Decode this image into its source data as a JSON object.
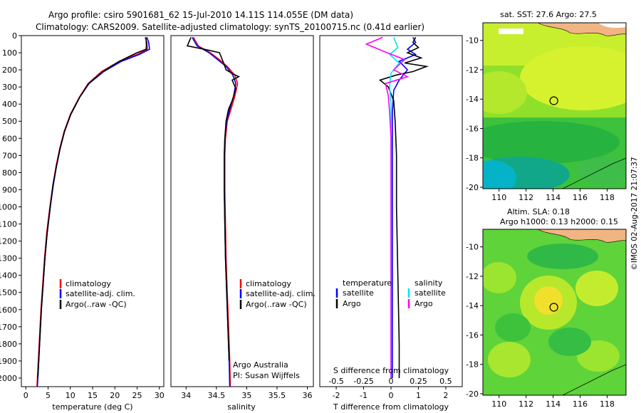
{
  "header": {
    "line1": "Argo profile: csiro 5901681_62 15-Jul-2010 14.11S 114.055E (DM data)",
    "line2": "Climatology: CARS2009. Satellite-adjusted climatology: synTS_20100715.nc (0.41d earlier)"
  },
  "colors": {
    "climatology": "#ff0000",
    "satellite": "#0000ff",
    "argo": "#000000",
    "sal_satellite": "#00e5ee",
    "sal_argo": "#ff00ff"
  },
  "chart_data": [
    {
      "type": "line",
      "id": "temperature-profile",
      "xlabel": "temperature (deg C)",
      "xlim": [
        -1,
        31
      ],
      "xticks": [
        0,
        5,
        10,
        15,
        20,
        25,
        30
      ],
      "ylim": [
        2050,
        0
      ],
      "yticks": [
        0,
        100,
        200,
        300,
        400,
        500,
        600,
        700,
        800,
        900,
        1000,
        1100,
        1200,
        1300,
        1400,
        1500,
        1600,
        1700,
        1800,
        1900,
        2000
      ],
      "legend": [
        "climatology",
        "satellite-adj. clim.",
        "Argo(..raw -QC)"
      ],
      "series": [
        {
          "name": "climatology",
          "points": [
            [
              26.8,
              10
            ],
            [
              27.2,
              40
            ],
            [
              27.3,
              80
            ],
            [
              25,
              110
            ],
            [
              21,
              150
            ],
            [
              17,
              210
            ],
            [
              14,
              280
            ],
            [
              12,
              360
            ],
            [
              10,
              460
            ],
            [
              8.6,
              560
            ],
            [
              7.6,
              660
            ],
            [
              6.8,
              760
            ],
            [
              6.1,
              870
            ],
            [
              5.4,
              1000
            ],
            [
              4.7,
              1150
            ],
            [
              4.2,
              1300
            ],
            [
              3.8,
              1450
            ],
            [
              3.4,
              1600
            ],
            [
              3.0,
              1800
            ],
            [
              2.7,
              1950
            ],
            [
              2.5,
              2050
            ]
          ]
        },
        {
          "name": "satellite-adj. clim.",
          "points": [
            [
              27.2,
              10
            ],
            [
              27.6,
              40
            ],
            [
              27.8,
              80
            ],
            [
              25.5,
              110
            ],
            [
              21.5,
              150
            ],
            [
              17.5,
              210
            ],
            [
              14.2,
              280
            ],
            [
              12.1,
              360
            ],
            [
              10.1,
              460
            ],
            [
              8.7,
              560
            ],
            [
              7.7,
              660
            ],
            [
              6.9,
              760
            ],
            [
              6.2,
              870
            ],
            [
              5.5,
              1000
            ],
            [
              4.8,
              1150
            ],
            [
              4.3,
              1300
            ],
            [
              3.9,
              1450
            ],
            [
              3.5,
              1600
            ],
            [
              3.1,
              1800
            ],
            [
              2.8,
              1950
            ],
            [
              2.6,
              2050
            ]
          ]
        },
        {
          "name": "Argo(..raw -QC)",
          "points": [
            [
              27.0,
              10
            ],
            [
              27.1,
              60
            ],
            [
              27.0,
              80
            ],
            [
              25.0,
              100
            ],
            [
              21.0,
              150
            ],
            [
              17.3,
              210
            ],
            [
              14.1,
              280
            ],
            [
              12.1,
              360
            ],
            [
              10.1,
              460
            ],
            [
              8.7,
              560
            ],
            [
              7.7,
              660
            ],
            [
              6.9,
              760
            ],
            [
              6.1,
              870
            ],
            [
              5.5,
              1000
            ],
            [
              4.8,
              1150
            ],
            [
              4.3,
              1300
            ],
            [
              3.9,
              1450
            ],
            [
              3.5,
              1600
            ],
            [
              3.1,
              1800
            ],
            [
              2.8,
              1950
            ],
            [
              2.7,
              2000
            ]
          ]
        }
      ]
    },
    {
      "type": "line",
      "id": "salinity-profile",
      "xlabel": "salinity",
      "xlim": [
        33.75,
        36.1
      ],
      "xticks": [
        34,
        34.5,
        35,
        35.5,
        36
      ],
      "ylim": [
        2050,
        0
      ],
      "legend": [
        "climatology",
        "satellite-adj. clim.",
        "Argo(..raw -QC)"
      ],
      "annotation": [
        "Argo Australia",
        "PI: Susan Wijffels"
      ],
      "series": [
        {
          "name": "climatology",
          "points": [
            [
              34.12,
              10
            ],
            [
              34.2,
              60
            ],
            [
              34.4,
              100
            ],
            [
              34.55,
              140
            ],
            [
              34.68,
              180
            ],
            [
              34.8,
              230
            ],
            [
              34.85,
              280
            ],
            [
              34.8,
              360
            ],
            [
              34.74,
              430
            ],
            [
              34.68,
              500
            ],
            [
              34.65,
              600
            ],
            [
              34.64,
              700
            ],
            [
              34.64,
              900
            ],
            [
              34.65,
              1100
            ],
            [
              34.66,
              1300
            ],
            [
              34.68,
              1500
            ],
            [
              34.7,
              1700
            ],
            [
              34.72,
              1900
            ],
            [
              34.73,
              2050
            ]
          ]
        },
        {
          "name": "satellite-adj. clim.",
          "points": [
            [
              34.1,
              10
            ],
            [
              34.18,
              60
            ],
            [
              34.38,
              100
            ],
            [
              34.52,
              140
            ],
            [
              34.66,
              180
            ],
            [
              34.77,
              230
            ],
            [
              34.82,
              280
            ],
            [
              34.78,
              360
            ],
            [
              34.72,
              430
            ],
            [
              34.67,
              500
            ],
            [
              34.64,
              600
            ],
            [
              34.63,
              700
            ],
            [
              34.63,
              900
            ],
            [
              34.64,
              1100
            ],
            [
              34.65,
              1300
            ],
            [
              34.67,
              1500
            ],
            [
              34.69,
              1700
            ],
            [
              34.71,
              1900
            ],
            [
              34.72,
              2050
            ]
          ]
        },
        {
          "name": "Argo(..raw -QC)",
          "points": [
            [
              34.08,
              10
            ],
            [
              34.02,
              60
            ],
            [
              34.3,
              80
            ],
            [
              34.55,
              100
            ],
            [
              34.62,
              160
            ],
            [
              34.66,
              200
            ],
            [
              34.78,
              225
            ],
            [
              34.87,
              240
            ],
            [
              34.76,
              260
            ],
            [
              34.82,
              310
            ],
            [
              34.76,
              380
            ],
            [
              34.7,
              430
            ],
            [
              34.66,
              500
            ],
            [
              34.64,
              600
            ],
            [
              34.63,
              700
            ],
            [
              34.63,
              900
            ],
            [
              34.64,
              1100
            ],
            [
              34.65,
              1300
            ],
            [
              34.67,
              1500
            ],
            [
              34.69,
              1700
            ],
            [
              34.71,
              1900
            ]
          ]
        }
      ]
    },
    {
      "type": "line",
      "id": "difference-profile",
      "xlabel": "T difference from climatology",
      "xlim": [
        -2.6,
        2.6
      ],
      "xticks": [
        -2,
        -1,
        0,
        1,
        2
      ],
      "top_axis_label": "S difference from climatology",
      "top_ticks": [
        "-0.5",
        "-0.25",
        "0",
        "0.25",
        "0.5"
      ],
      "top_ticks_at": [
        -2,
        -1,
        0,
        1,
        2
      ],
      "ylim": [
        2050,
        0
      ],
      "legend_groups": [
        {
          "title": "temperature",
          "items": [
            "satellite",
            "Argo"
          ]
        },
        {
          "title": "salinity",
          "items": [
            "satellite",
            "Argo"
          ]
        }
      ],
      "series": [
        {
          "name": "temperature satellite",
          "points": [
            [
              0.8,
              10
            ],
            [
              0.9,
              40
            ],
            [
              0.6,
              80
            ],
            [
              0.9,
              110
            ],
            [
              0.3,
              150
            ],
            [
              0.6,
              200
            ],
            [
              0.3,
              260
            ],
            [
              0.1,
              320
            ],
            [
              0.05,
              450
            ],
            [
              0.05,
              700
            ],
            [
              0.05,
              1000
            ],
            [
              0.05,
              1400
            ],
            [
              0.05,
              1800
            ],
            [
              0.05,
              2000
            ]
          ]
        },
        {
          "name": "temperature Argo",
          "points": [
            [
              0.9,
              10
            ],
            [
              0.8,
              40
            ],
            [
              1.0,
              70
            ],
            [
              0.6,
              100
            ],
            [
              1.1,
              130
            ],
            [
              0.5,
              160
            ],
            [
              1.3,
              180
            ],
            [
              0.8,
              210
            ],
            [
              0.2,
              230
            ],
            [
              -0.4,
              260
            ],
            [
              -0.1,
              300
            ],
            [
              0.1,
              380
            ],
            [
              0.15,
              500
            ],
            [
              0.2,
              700
            ],
            [
              0.2,
              1000
            ],
            [
              0.25,
              1400
            ],
            [
              0.3,
              1800
            ],
            [
              0.3,
              2000
            ]
          ]
        },
        {
          "name": "salinity satellite",
          "points": [
            [
              0.1,
              10
            ],
            [
              0.25,
              70
            ],
            [
              -0.05,
              110
            ],
            [
              0.3,
              160
            ],
            [
              0.0,
              220
            ],
            [
              -0.05,
              300
            ],
            [
              0.0,
              400
            ],
            [
              0.0,
              600
            ],
            [
              0.0,
              900
            ],
            [
              0.0,
              1300
            ],
            [
              0.0,
              1700
            ],
            [
              0.0,
              2000
            ]
          ]
        },
        {
          "name": "salinity Argo",
          "points": [
            [
              -0.3,
              10
            ],
            [
              -0.9,
              50
            ],
            [
              -0.6,
              70
            ],
            [
              -0.3,
              90
            ],
            [
              0.5,
              140
            ],
            [
              0.1,
              200
            ],
            [
              0.6,
              240
            ],
            [
              -0.2,
              280
            ],
            [
              -0.1,
              350
            ],
            [
              -0.05,
              450
            ],
            [
              0.0,
              600
            ],
            [
              0.0,
              900
            ],
            [
              0.0,
              1400
            ],
            [
              0.0,
              2000
            ]
          ]
        }
      ]
    },
    {
      "type": "heatmap",
      "id": "sst-map",
      "title": "sat. SST: 27.6  Argo: 27.5",
      "xticks": [
        "110",
        "112",
        "114",
        "116",
        "118"
      ],
      "yticks": [
        "-10",
        "-12",
        "-14",
        "-16",
        "-18",
        "-20"
      ],
      "xlim": [
        108.8,
        119.4
      ],
      "ylim": [
        -20.1,
        -8.8
      ],
      "marker": {
        "lon": 114.055,
        "lat": -14.11
      }
    },
    {
      "type": "heatmap",
      "id": "sla-map",
      "title_line1": "Altim. SLA: 0.18",
      "title_line2": "Argo h1000: 0.13 h2000: 0.15",
      "xticks": [
        "110",
        "112",
        "114",
        "116",
        "118"
      ],
      "yticks": [
        "-10",
        "-12",
        "-14",
        "-16",
        "-18",
        "-20"
      ],
      "xlim": [
        108.8,
        119.4
      ],
      "ylim": [
        -20.1,
        -8.8
      ],
      "marker": {
        "lon": 114.055,
        "lat": -14.11
      }
    }
  ],
  "footer": {
    "stamp": "©IMOS 02-Aug-2017 21:07:37"
  }
}
